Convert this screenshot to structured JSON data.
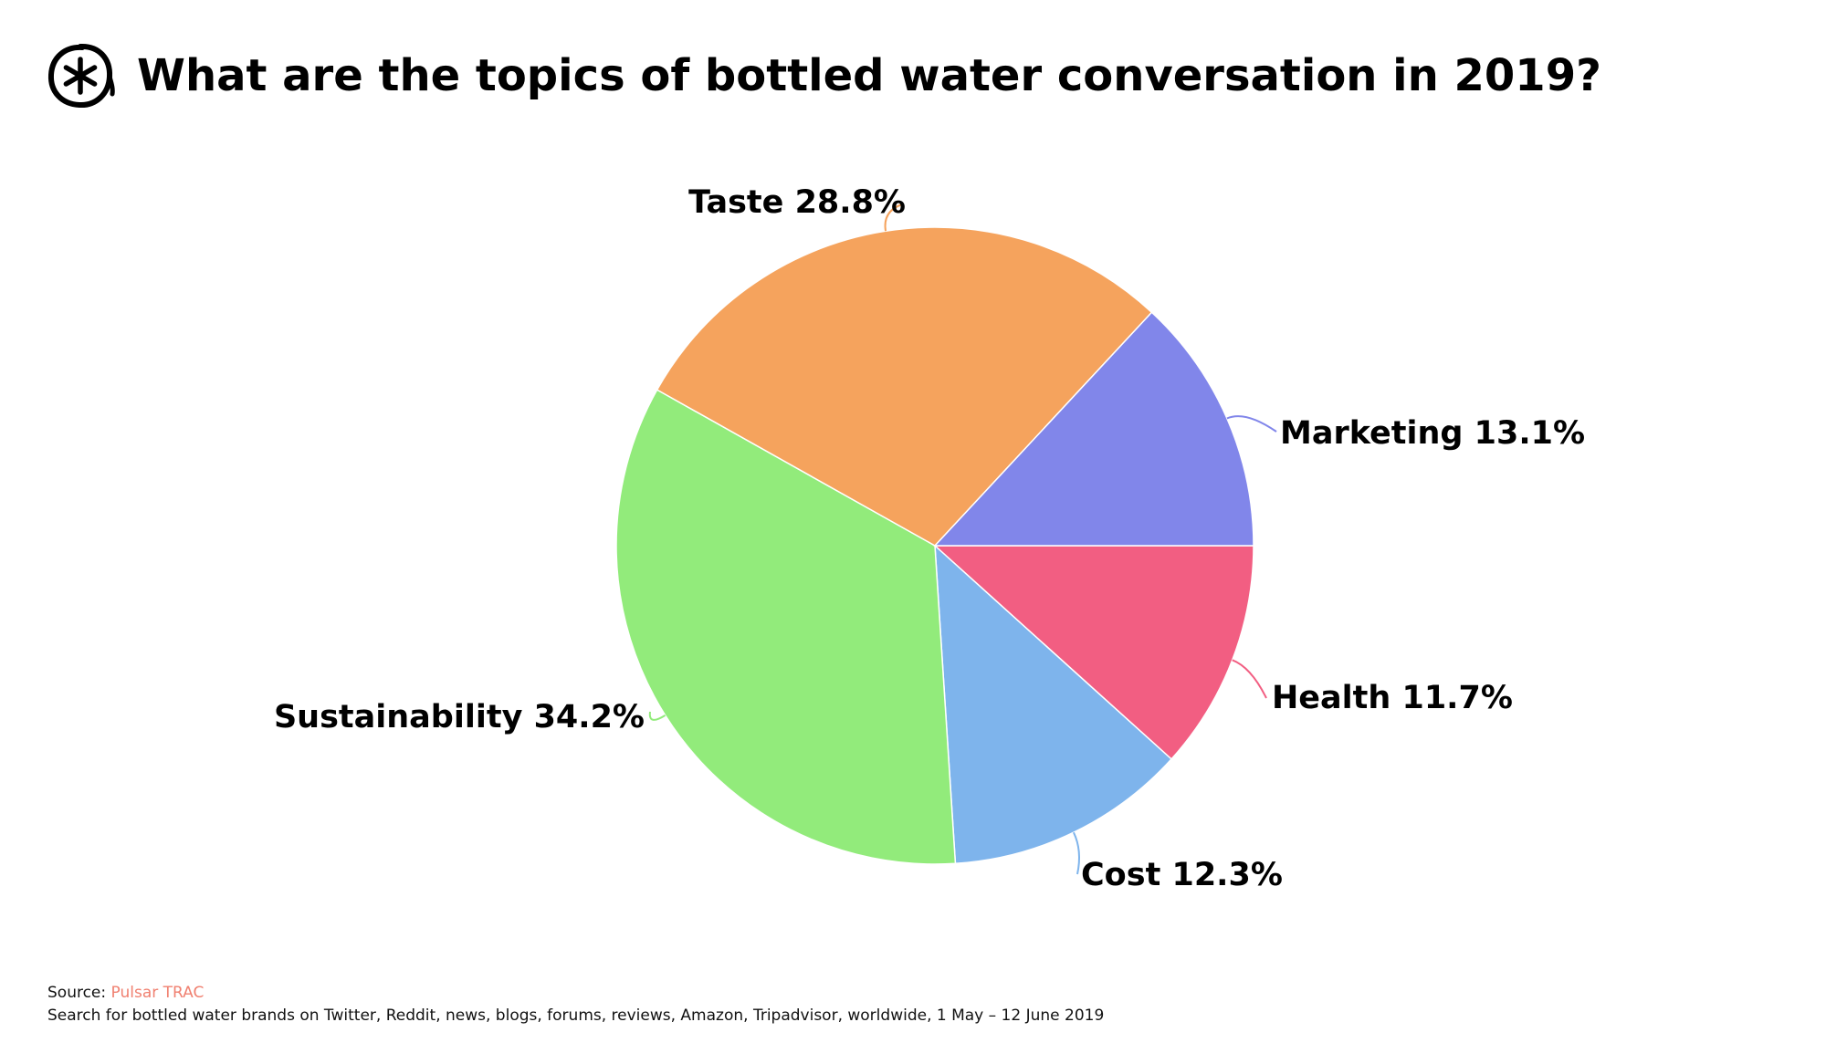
{
  "header": {
    "title": "What are the topics of bottled water conversation in 2019?",
    "logo_icon": "asterisk-circle-icon"
  },
  "chart_data": {
    "type": "pie",
    "title": "What are the topics of bottled water conversation in 2019?",
    "start_angle_deg": 0,
    "slices": [
      {
        "label": "Health",
        "value": 11.7,
        "display": "Health 11.7%",
        "color": "#f25e82"
      },
      {
        "label": "Cost",
        "value": 12.3,
        "display": "Cost 12.3%",
        "color": "#7eb4ec"
      },
      {
        "label": "Sustainability",
        "value": 34.2,
        "display": "Sustainability 34.2%",
        "color": "#92eb7b"
      },
      {
        "label": "Taste",
        "value": 28.8,
        "display": "Taste 28.8%",
        "color": "#f5a35d"
      },
      {
        "label": "Marketing",
        "value": 13.1,
        "display": "Marketing 13.1%",
        "color": "#8186ea"
      }
    ]
  },
  "footer": {
    "source_label": "Source:",
    "source_name": "Pulsar TRAC",
    "note": "Search for bottled water brands on Twitter, Reddit, news, blogs, forums, reviews, Amazon, Tripadvisor, worldwide, 1 May – 12 June 2019"
  }
}
